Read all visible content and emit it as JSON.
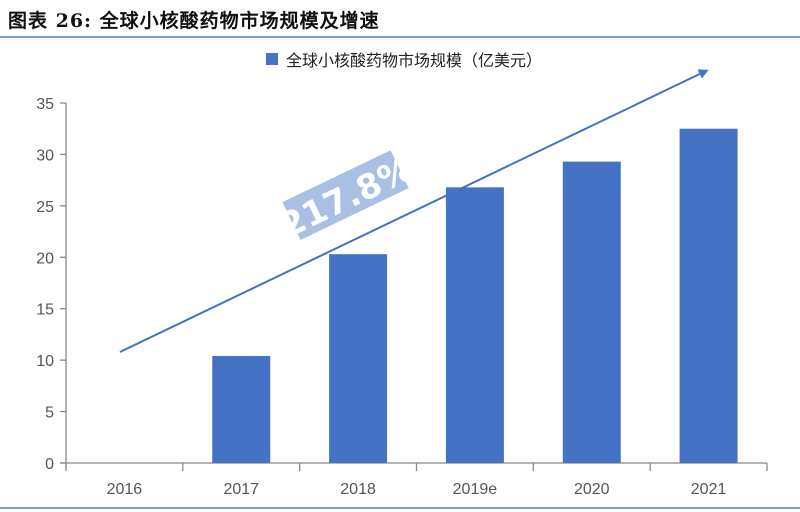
{
  "header": {
    "title": "图表 26:  全球小核酸药物市场规模及增速"
  },
  "colors": {
    "bar": "#4472c4",
    "arrow": "#4472c4",
    "annotation_bg": "#a9c0e4",
    "annotation_text": "#ffffff",
    "axis": "#888888",
    "rule": "#7f9fcf"
  },
  "chart_data": {
    "type": "bar",
    "title": "全球小核酸药物市场规模及增速",
    "categories": [
      "2016",
      "2017",
      "2018",
      "2019e",
      "2020",
      "2021"
    ],
    "series": [
      {
        "name": "全球小核酸药物市场规模（亿美元）",
        "values": [
          null,
          10.4,
          20.3,
          26.8,
          29.3,
          32.5
        ]
      }
    ],
    "xlabel": "",
    "ylabel": "",
    "ylim": [
      0,
      35
    ],
    "yticks": [
      0,
      5,
      10,
      15,
      20,
      25,
      30,
      35
    ],
    "grid": false,
    "legend_position": "top",
    "annotations": [
      {
        "type": "arrow",
        "from_category": "2016",
        "to_category": "2021",
        "label": "217.8%"
      }
    ]
  }
}
